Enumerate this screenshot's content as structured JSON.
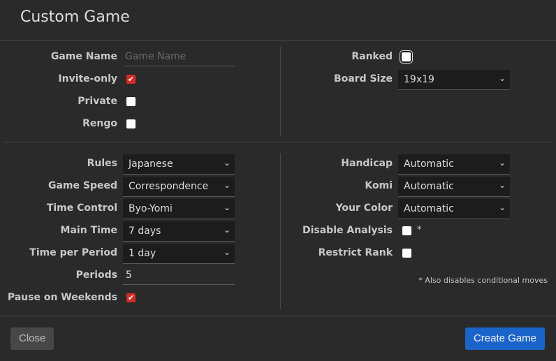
{
  "title": "Custom Game",
  "game_name": {
    "label": "Game Name",
    "placeholder": "Game Name",
    "value": ""
  },
  "invite_only": {
    "label": "Invite-only",
    "checked": true
  },
  "private": {
    "label": "Private",
    "checked": false
  },
  "rengo": {
    "label": "Rengo",
    "checked": false
  },
  "ranked": {
    "label": "Ranked",
    "checked": false
  },
  "board_size": {
    "label": "Board Size",
    "value": "19x19"
  },
  "rules": {
    "label": "Rules",
    "value": "Japanese"
  },
  "game_speed": {
    "label": "Game Speed",
    "value": "Correspondence"
  },
  "time_control": {
    "label": "Time Control",
    "value": "Byo-Yomi"
  },
  "main_time": {
    "label": "Main Time",
    "value": "7 days"
  },
  "time_per_period": {
    "label": "Time per Period",
    "value": "1 day"
  },
  "periods": {
    "label": "Periods",
    "value": "5"
  },
  "pause_on_weekends": {
    "label": "Pause on Weekends",
    "checked": true
  },
  "handicap": {
    "label": "Handicap",
    "value": "Automatic"
  },
  "komi": {
    "label": "Komi",
    "value": "Automatic"
  },
  "your_color": {
    "label": "Your Color",
    "value": "Automatic"
  },
  "disable_analysis": {
    "label": "Disable Analysis",
    "checked": false,
    "asterisk": "*"
  },
  "restrict_rank": {
    "label": "Restrict Rank",
    "checked": false
  },
  "note": "* Also disables conditional moves",
  "buttons": {
    "close": "Close",
    "create": "Create Game"
  },
  "colors": {
    "accent": "#1a64c9",
    "checkbox_on": "#d52b26",
    "background": "#2a2a2a"
  },
  "icons": {
    "chevron": "⌄",
    "check": "✔"
  }
}
